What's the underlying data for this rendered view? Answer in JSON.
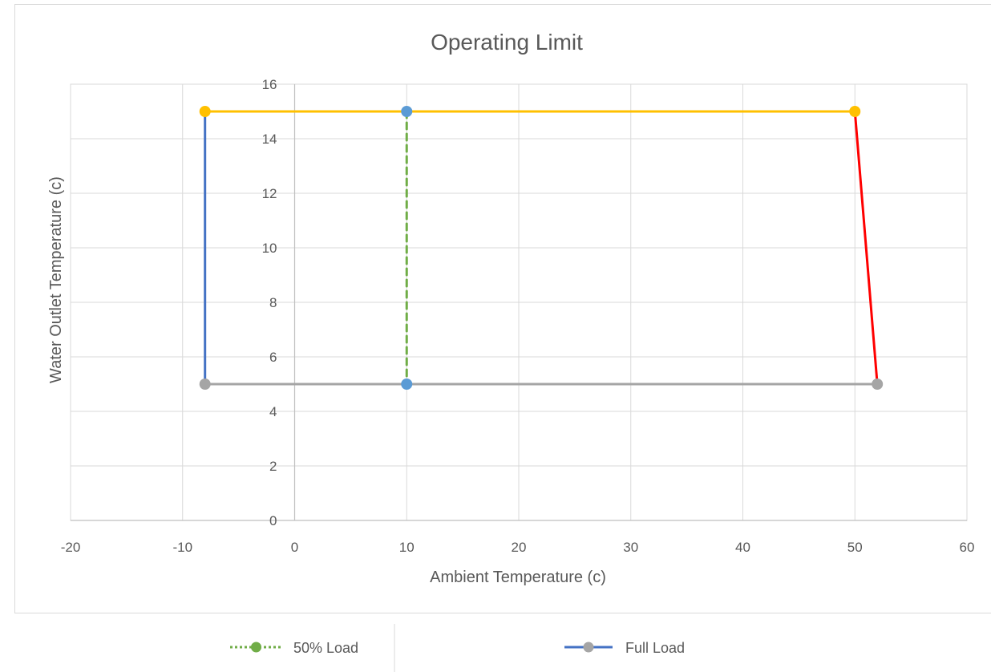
{
  "chart_data": {
    "type": "scatter",
    "title": "Operating Limit",
    "xlabel": "Ambient Temperature (c)",
    "ylabel": "Water Outlet Temperature (c)",
    "xlim": [
      -20,
      60
    ],
    "ylim": [
      0,
      16
    ],
    "x_ticks": [
      -20,
      -10,
      0,
      10,
      20,
      30,
      40,
      50,
      60
    ],
    "y_ticks": [
      0,
      2,
      4,
      6,
      8,
      10,
      12,
      14,
      16
    ],
    "grid": true,
    "legend_position": "bottom",
    "series": [
      {
        "color": "#ffc000",
        "dash": "solid",
        "marker": true,
        "points": [
          [
            -8,
            15
          ],
          [
            50,
            15
          ]
        ]
      },
      {
        "color": "#4472c4",
        "dash": "solid",
        "marker": false,
        "points": [
          [
            -8,
            15
          ],
          [
            -8,
            5
          ]
        ]
      },
      {
        "color": "#a5a5a5",
        "dash": "solid",
        "marker": true,
        "points": [
          [
            -8,
            5
          ],
          [
            52,
            5
          ]
        ]
      },
      {
        "color": "#ff0000",
        "dash": "solid",
        "marker": false,
        "points": [
          [
            50,
            15
          ],
          [
            52,
            5
          ]
        ]
      },
      {
        "color": "#70ad47",
        "dash": "dashed",
        "marker": false,
        "points": [
          [
            10,
            15
          ],
          [
            10,
            5
          ]
        ]
      },
      {
        "color": "#5b9bd5",
        "dash": "none",
        "marker": true,
        "points": [
          [
            10,
            15
          ],
          [
            10,
            5
          ]
        ]
      }
    ],
    "legend": [
      {
        "name": "50% Load",
        "color": "#70ad47",
        "marker_color": "#70ad47",
        "dash": "dotted"
      },
      {
        "name": "Full Load",
        "color": "#4472c4",
        "marker_color": "#a5a5a5",
        "dash": "solid"
      }
    ]
  }
}
